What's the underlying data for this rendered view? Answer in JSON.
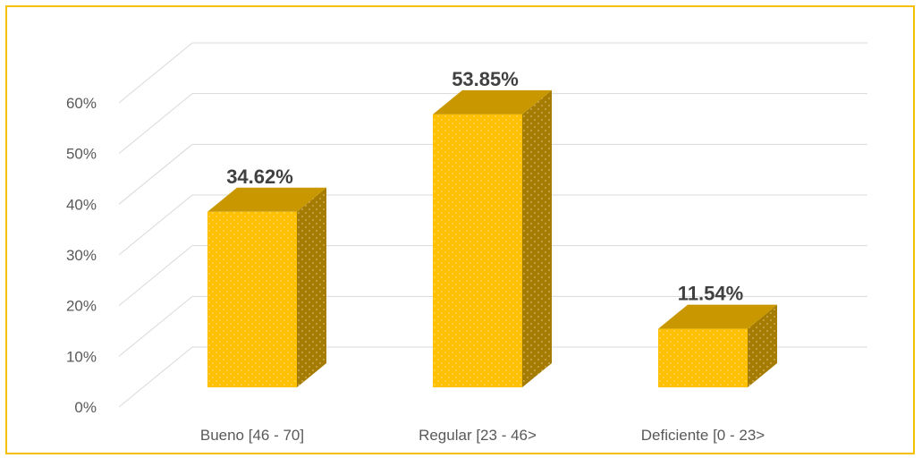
{
  "chart_data": {
    "type": "bar",
    "categories": [
      "Bueno [46 - 70]",
      "Regular [23 - 46>",
      "Deficiente [0 - 23>"
    ],
    "values": [
      34.62,
      53.85,
      11.54
    ],
    "value_labels": [
      "34.62%",
      "53.85%",
      "11.54%"
    ],
    "title": "",
    "xlabel": "",
    "ylabel": "",
    "ylim": [
      0,
      60
    ],
    "yticks": [
      "0%",
      "10%",
      "20%",
      "30%",
      "40%",
      "50%",
      "60%"
    ],
    "grid": true,
    "three_d": true,
    "legend": "none",
    "colors": {
      "bar_front": "#ffc000",
      "bar_top": "#c99700",
      "bar_side": "#a67c00",
      "grid": "#d9d9d9",
      "frame": "#f5c000"
    }
  }
}
